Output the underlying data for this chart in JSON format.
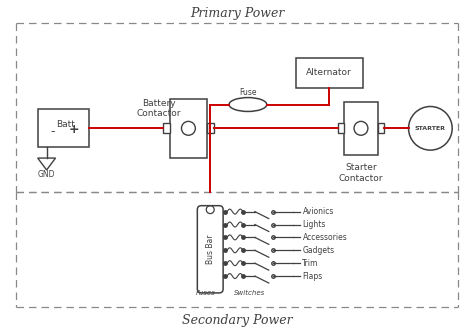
{
  "bg_color": "#ffffff",
  "line_color_black": "#404040",
  "line_color_red": "#cc0000",
  "title_primary": "Primary Power",
  "title_secondary": "Secondary Power",
  "label_fuse": "Fuse",
  "label_batt": "Batt",
  "label_gnd": "GND",
  "label_battery_contactor": "Battery\nContactor",
  "label_alternator": "Alternator",
  "label_starter_contactor": "Starter\nContactor",
  "label_starter": "STARTER",
  "label_bus_bar": "Bus Bar",
  "label_fuses": "Fuses",
  "label_switches": "Switches",
  "bus_items": [
    "Avionics",
    "Lights",
    "Accessories",
    "Gadgets",
    "Trim",
    "Flaps"
  ],
  "title_fontsize": 9,
  "label_fontsize": 6.5,
  "small_fontsize": 5.5
}
